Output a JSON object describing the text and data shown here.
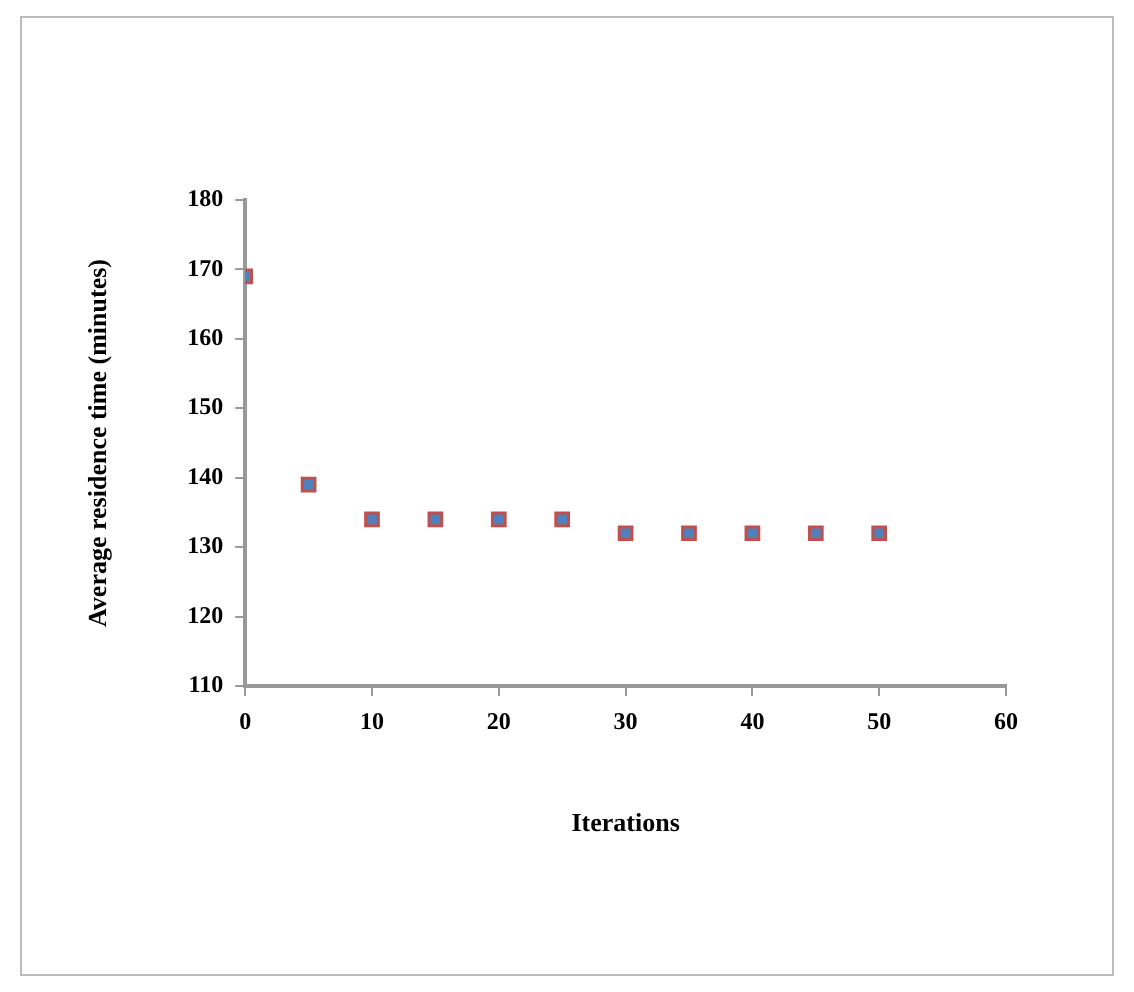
{
  "chart_data": {
    "type": "scatter",
    "xlabel": "Iterations",
    "ylabel": "Average residence time (minutes)",
    "x": [
      0,
      5,
      10,
      15,
      20,
      25,
      30,
      35,
      40,
      45,
      50
    ],
    "series": [
      {
        "color": "#4f81bd",
        "values": [
          169,
          139,
          134,
          134,
          134,
          134,
          132,
          132,
          132,
          132,
          132
        ]
      }
    ],
    "xlim": [
      0,
      60
    ],
    "xticks": [
      0,
      10,
      20,
      30,
      40,
      50,
      60
    ],
    "ylim": [
      110,
      180
    ],
    "yticks": [
      110,
      120,
      130,
      140,
      150,
      160,
      170,
      180
    ],
    "grid": false,
    "legend": false,
    "marker": "square"
  }
}
